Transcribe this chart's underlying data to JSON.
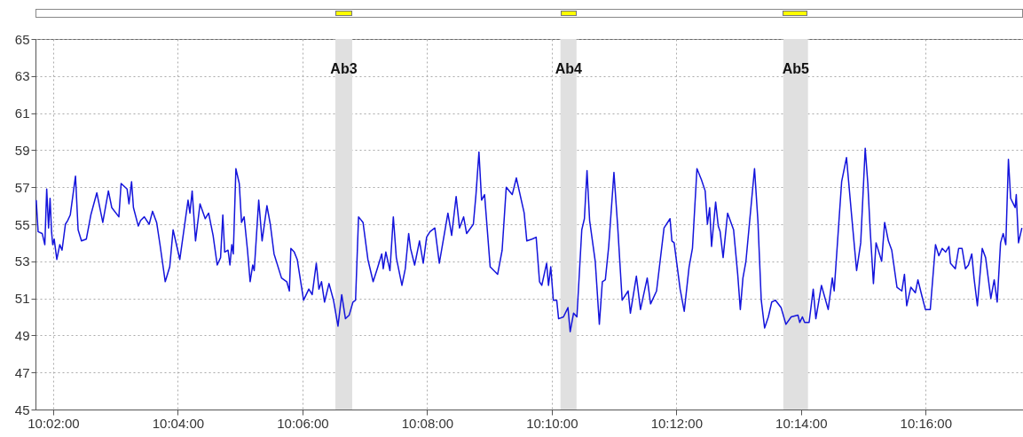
{
  "chart_data": {
    "type": "line",
    "x": [
      10.0288,
      10.0293,
      10.0304,
      10.0311,
      10.0316,
      10.0321,
      10.0325,
      10.0329,
      10.0332,
      10.0336,
      10.0343,
      10.0351,
      10.0357,
      10.0366,
      10.0372,
      10.0379,
      10.0393,
      10.04,
      10.0409,
      10.0422,
      10.0434,
      10.045,
      10.0466,
      10.0481,
      10.049,
      10.0509,
      10.0515,
      10.0531,
      10.0536,
      10.0543,
      10.0548,
      10.0561,
      10.0567,
      10.0577,
      10.059,
      10.0599,
      10.061,
      10.0619,
      10.0633,
      10.0645,
      10.0654,
      10.0672,
      10.0694,
      10.0699,
      10.0705,
      10.0714,
      10.0726,
      10.074,
      10.0749,
      10.0761,
      10.0772,
      10.0781,
      10.0787,
      10.0792,
      10.0801,
      10.0806,
      10.0811,
      10.0815,
      10.0822,
      10.0831,
      10.0837,
      10.0844,
      10.0853,
      10.086,
      10.0867,
      10.0871,
      10.0883,
      10.0892,
      10.0905,
      10.0914,
      10.0924,
      10.0944,
      10.0958,
      10.0965,
      10.0969,
      10.0978,
      10.0986,
      10.1003,
      10.1017,
      10.1026,
      10.1037,
      10.1044,
      10.1051,
      10.1059,
      10.1071,
      10.1083,
      10.1095,
      10.1105,
      10.1115,
      10.1125,
      10.1135,
      10.1142,
      10.115,
      10.1162,
      10.1175,
      10.1189,
      10.12,
      10.1212,
      10.1216,
      10.1223,
      10.1234,
      10.1243,
      10.1251,
      10.1266,
      10.1275,
      10.1284,
      10.1289,
      10.13,
      10.1313,
      10.1323,
      10.1332,
      10.1341,
      10.1354,
      10.1366,
      10.1389,
      10.1399,
      10.1411,
      10.142,
      10.1431,
      10.1439,
      10.1457,
      10.1464,
      10.1472,
      10.1479,
      10.1487,
      10.1502,
      10.1522,
      10.1534,
      10.1545,
      10.1561,
      10.1572,
      10.1593,
      10.16,
      10.1614,
      10.1625,
      10.1634,
      10.164,
      10.1653,
      10.1658,
      10.1664,
      10.1671,
      10.168,
      10.1685,
      10.1698,
      10.171,
      10.1716,
      10.1725,
      10.1734,
      10.1747,
      10.1754,
      10.1761,
      10.1768,
      10.1783,
      10.1794,
      10.1802,
      10.181,
      10.1819,
      10.1833,
      10.1843,
      10.1855,
      10.1871,
      10.1877,
      10.1893,
      10.1904,
      10.1922,
      10.1931,
      10.1947,
      10.1967,
      10.1983,
      10.1988,
      10.1994,
      10.201,
      10.2021,
      10.2034,
      10.2043,
      10.2055,
      10.2067,
      10.2077,
      10.2083,
      10.2089,
      10.2094,
      10.2105,
      10.2112,
      10.2117,
      10.2125,
      10.2137,
      10.2153,
      10.2164,
      10.2171,
      10.2178,
      10.2186,
      10.2209,
      10.2218,
      10.2227,
      10.2236,
      10.2246,
      10.2255,
      10.2265,
      10.228,
      10.2293,
      10.2307,
      10.2325,
      10.233,
      10.2337,
      10.2343,
      10.2355,
      10.2366,
      10.2373,
      10.2388,
      10.2406,
      10.2417,
      10.2422,
      10.2442,
      10.2455,
      10.2469,
      10.2482,
      10.2493,
      10.2505,
      10.2512,
      10.2518,
      10.2527,
      10.2534,
      10.2549,
      10.2557,
      10.2567,
      10.2576,
      10.259,
      10.2603,
      10.261,
      10.2616,
      10.2627,
      10.2639,
      10.2646,
      10.2657,
      10.2666,
      10.2679,
      10.2693,
      10.2702,
      10.2711,
      10.272,
      10.2729,
      10.2733,
      10.2746,
      10.2755,
      10.2764,
      10.2773,
      10.2781,
      10.279,
      10.2796,
      10.2805,
      10.2818,
      10.2827,
      10.2841,
      10.285,
      10.2858,
      10.2867,
      10.2874,
      10.2881,
      10.2888,
      10.2894,
      10.2906,
      10.2909,
      10.2915,
      10.2924
    ],
    "values": [
      56.3,
      54.6,
      54.5,
      53.9,
      56.9,
      54.8,
      56.4,
      54.6,
      53.9,
      54.2,
      53.1,
      53.9,
      53.6,
      55.0,
      55.2,
      55.5,
      57.6,
      54.7,
      54.1,
      54.2,
      55.5,
      56.7,
      55.1,
      56.8,
      55.9,
      55.4,
      57.2,
      56.9,
      56.1,
      57.3,
      55.9,
      54.9,
      55.2,
      55.4,
      55.0,
      55.7,
      55.1,
      53.9,
      51.9,
      52.7,
      54.7,
      53.1,
      56.3,
      55.6,
      56.8,
      54.1,
      56.1,
      55.3,
      55.6,
      54.4,
      52.8,
      53.2,
      55.5,
      53.5,
      53.6,
      52.8,
      53.9,
      53.4,
      58.0,
      57.2,
      55.1,
      55.4,
      53.6,
      51.9,
      52.8,
      52.5,
      56.3,
      54.1,
      56.0,
      55.0,
      53.4,
      52.1,
      51.9,
      51.4,
      53.7,
      53.5,
      53.1,
      50.9,
      51.5,
      51.2,
      52.9,
      51.5,
      51.9,
      50.8,
      51.8,
      50.9,
      49.5,
      51.2,
      49.9,
      50.1,
      50.8,
      50.9,
      55.4,
      55.1,
      53.1,
      51.9,
      52.6,
      53.4,
      52.6,
      53.5,
      52.5,
      55.4,
      53.2,
      51.7,
      52.6,
      54.5,
      53.7,
      52.8,
      54.1,
      52.9,
      54.3,
      54.6,
      54.8,
      52.9,
      55.6,
      54.4,
      56.5,
      54.8,
      55.4,
      54.5,
      55.0,
      56.6,
      58.9,
      56.3,
      56.6,
      52.7,
      52.3,
      53.6,
      57.0,
      56.6,
      57.5,
      55.6,
      54.1,
      54.2,
      54.3,
      51.9,
      51.7,
      52.9,
      51.7,
      52.7,
      50.9,
      50.9,
      49.9,
      50.0,
      50.5,
      49.2,
      50.2,
      50.0,
      54.7,
      55.3,
      57.9,
      55.2,
      53.0,
      49.6,
      51.9,
      52.0,
      53.8,
      57.8,
      54.9,
      50.9,
      51.4,
      50.2,
      52.2,
      50.4,
      52.1,
      50.7,
      51.4,
      54.8,
      55.3,
      54.1,
      54.0,
      51.5,
      50.3,
      52.7,
      53.7,
      58.0,
      57.4,
      56.8,
      55.0,
      55.9,
      53.8,
      56.2,
      54.9,
      54.6,
      53.2,
      55.6,
      54.7,
      52.3,
      50.4,
      52.1,
      53.0,
      58.0,
      55.2,
      50.9,
      49.4,
      50.0,
      50.8,
      50.9,
      50.5,
      49.6,
      50.0,
      50.1,
      49.7,
      50.0,
      49.7,
      49.7,
      51.5,
      49.9,
      51.7,
      50.4,
      52.1,
      51.4,
      57.3,
      58.6,
      55.4,
      52.5,
      54.0,
      59.1,
      57.2,
      54.8,
      51.8,
      54.0,
      53.0,
      55.1,
      54.1,
      53.6,
      51.6,
      51.4,
      52.3,
      50.6,
      51.6,
      51.3,
      52.0,
      51.1,
      50.4,
      50.4,
      53.9,
      53.3,
      53.7,
      53.5,
      53.8,
      52.9,
      52.6,
      53.7,
      53.7,
      52.6,
      52.8,
      53.4,
      52.1,
      50.6,
      53.7,
      53.2,
      51.0,
      52.0,
      50.8,
      54.0,
      54.5,
      53.9,
      58.5,
      56.4,
      55.9,
      56.6,
      54.0,
      54.8
    ],
    "color": "#1414dc",
    "xlim": [
      10.0286,
      10.2927
    ],
    "xticks": [
      {
        "value": 10.03333333,
        "label": "10:02:00"
      },
      {
        "value": 10.06666667,
        "label": "10:04:00"
      },
      {
        "value": 10.1,
        "label": "10:06:00"
      },
      {
        "value": 10.13333333,
        "label": "10:08:00"
      },
      {
        "value": 10.16666667,
        "label": "10:10:00"
      },
      {
        "value": 10.2,
        "label": "10:12:00"
      },
      {
        "value": 10.23333333,
        "label": "10:14:00"
      },
      {
        "value": 10.26666667,
        "label": "10:16:00"
      }
    ],
    "ylim": [
      45,
      65
    ],
    "yticks": [
      45,
      47,
      49,
      51,
      53,
      55,
      57,
      59,
      61,
      63,
      65
    ],
    "grid": true,
    "bands": [
      {
        "axis": "x",
        "from": 10.1088,
        "to": 10.1133,
        "label": "Ab3",
        "color": "#e0e0e0"
      },
      {
        "axis": "x",
        "from": 10.169,
        "to": 10.1733,
        "label": "Ab4",
        "color": "#e0e0e0"
      },
      {
        "axis": "x",
        "from": 10.2286,
        "to": 10.2352,
        "label": "Ab5",
        "color": "#e0e0e0"
      }
    ]
  }
}
